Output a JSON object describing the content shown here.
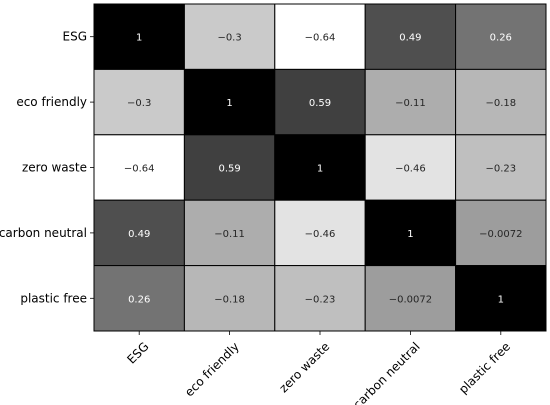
{
  "chart_data": {
    "type": "heatmap",
    "title": "",
    "xlabel": "",
    "ylabel": "",
    "labels": [
      "ESG",
      "eco friendly",
      "zero waste",
      "carbon neutral",
      "plastic free"
    ],
    "values": [
      [
        1,
        -0.3,
        -0.64,
        0.49,
        0.26
      ],
      [
        -0.3,
        1,
        0.59,
        -0.11,
        -0.18
      ],
      [
        -0.64,
        0.59,
        1,
        -0.46,
        -0.23
      ],
      [
        0.49,
        -0.11,
        -0.46,
        1,
        -0.0072
      ],
      [
        0.26,
        -0.18,
        -0.23,
        -0.0072,
        1
      ]
    ],
    "value_labels": [
      [
        "1",
        "−0.3",
        "−0.64",
        "0.49",
        "0.26"
      ],
      [
        "−0.3",
        "1",
        "0.59",
        "−0.11",
        "−0.18"
      ],
      [
        "−0.64",
        "0.59",
        "1",
        "−0.46",
        "−0.23"
      ],
      [
        "0.49",
        "−0.11",
        "−0.46",
        "1",
        "−0.0072"
      ],
      [
        "0.26",
        "−0.18",
        "−0.23",
        "−0.0072",
        "1"
      ]
    ],
    "vmin": -0.64,
    "vmax": 1,
    "colormap": "grayscale-reversed",
    "colors": {
      "low": "#ffffff",
      "high": "#000000",
      "grid": "#000000"
    },
    "grid": true,
    "legend": "none"
  }
}
